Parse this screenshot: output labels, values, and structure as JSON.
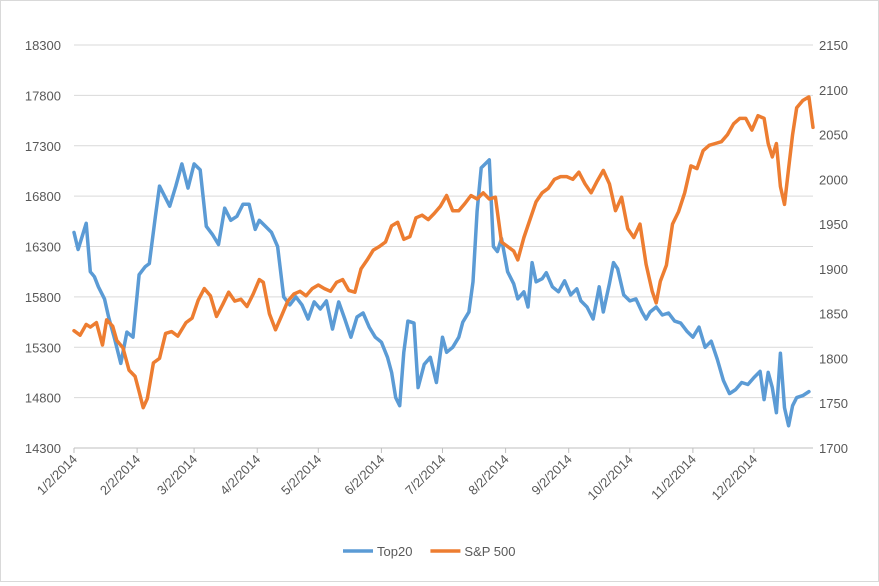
{
  "chart_data": {
    "type": "line",
    "title": "",
    "xlabel": "",
    "ylabel": "",
    "y_left_ticks": [
      14300,
      14800,
      15300,
      15800,
      16300,
      16800,
      17300,
      17800,
      18300
    ],
    "y_right_ticks": [
      1700,
      1750,
      1800,
      1850,
      1900,
      1950,
      2000,
      2050,
      2100,
      2150
    ],
    "ylim_left": [
      14300,
      18300
    ],
    "ylim_right": [
      1700,
      2150
    ],
    "x_tick_labels": [
      "1/2/2014",
      "2/2/2014",
      "3/2/2014",
      "4/2/2014",
      "5/2/2014",
      "6/2/2014",
      "7/2/2014",
      "8/2/2014",
      "9/2/2014",
      "10/2/2014",
      "11/2/2014",
      "12/2/2014"
    ],
    "x_range": [
      "1/2/2014",
      "12/31/2014"
    ],
    "grid": "horizontal",
    "legend_position": "bottom",
    "series": [
      {
        "name": "Top20",
        "axis": "left",
        "color": "#5b9bd5",
        "points": [
          [
            "2014-01-02",
            16440
          ],
          [
            "2014-01-04",
            16270
          ],
          [
            "2014-01-08",
            16530
          ],
          [
            "2014-01-10",
            16050
          ],
          [
            "2014-01-12",
            16000
          ],
          [
            "2014-01-14",
            15900
          ],
          [
            "2014-01-17",
            15780
          ],
          [
            "2014-01-19",
            15600
          ],
          [
            "2014-01-22",
            15380
          ],
          [
            "2014-01-25",
            15140
          ],
          [
            "2014-01-28",
            15450
          ],
          [
            "2014-01-31",
            15400
          ],
          [
            "2014-02-03",
            16020
          ],
          [
            "2014-02-06",
            16100
          ],
          [
            "2014-02-08",
            16130
          ],
          [
            "2014-02-11",
            16600
          ],
          [
            "2014-02-13",
            16900
          ],
          [
            "2014-02-16",
            16780
          ],
          [
            "2014-02-18",
            16700
          ],
          [
            "2014-02-21",
            16900
          ],
          [
            "2014-02-24",
            17120
          ],
          [
            "2014-02-27",
            16880
          ],
          [
            "2014-03-02",
            17120
          ],
          [
            "2014-03-05",
            17060
          ],
          [
            "2014-03-08",
            16500
          ],
          [
            "2014-03-11",
            16420
          ],
          [
            "2014-03-14",
            16320
          ],
          [
            "2014-03-17",
            16680
          ],
          [
            "2014-03-20",
            16560
          ],
          [
            "2014-03-23",
            16600
          ],
          [
            "2014-03-26",
            16720
          ],
          [
            "2014-03-29",
            16720
          ],
          [
            "2014-04-01",
            16470
          ],
          [
            "2014-04-03",
            16560
          ],
          [
            "2014-04-06",
            16500
          ],
          [
            "2014-04-09",
            16440
          ],
          [
            "2014-04-12",
            16300
          ],
          [
            "2014-04-15",
            15800
          ],
          [
            "2014-04-18",
            15720
          ],
          [
            "2014-04-21",
            15800
          ],
          [
            "2014-04-24",
            15720
          ],
          [
            "2014-04-27",
            15580
          ],
          [
            "2014-04-30",
            15750
          ],
          [
            "2014-05-03",
            15680
          ],
          [
            "2014-05-06",
            15760
          ],
          [
            "2014-05-09",
            15480
          ],
          [
            "2014-05-12",
            15750
          ],
          [
            "2014-05-15",
            15580
          ],
          [
            "2014-05-18",
            15400
          ],
          [
            "2014-05-21",
            15600
          ],
          [
            "2014-05-24",
            15640
          ],
          [
            "2014-05-27",
            15500
          ],
          [
            "2014-05-30",
            15400
          ],
          [
            "2014-06-02",
            15350
          ],
          [
            "2014-06-05",
            15200
          ],
          [
            "2014-06-07",
            15050
          ],
          [
            "2014-06-09",
            14800
          ],
          [
            "2014-06-11",
            14720
          ],
          [
            "2014-06-13",
            15250
          ],
          [
            "2014-06-15",
            15560
          ],
          [
            "2014-06-18",
            15540
          ],
          [
            "2014-06-20",
            14900
          ],
          [
            "2014-06-23",
            15130
          ],
          [
            "2014-06-26",
            15200
          ],
          [
            "2014-06-29",
            14950
          ],
          [
            "2014-07-02",
            15400
          ],
          [
            "2014-07-04",
            15250
          ],
          [
            "2014-07-07",
            15300
          ],
          [
            "2014-07-10",
            15400
          ],
          [
            "2014-07-12",
            15550
          ],
          [
            "2014-07-15",
            15650
          ],
          [
            "2014-07-17",
            15950
          ],
          [
            "2014-07-19",
            16650
          ],
          [
            "2014-07-21",
            17080
          ],
          [
            "2014-07-25",
            17160
          ],
          [
            "2014-07-27",
            16300
          ],
          [
            "2014-07-29",
            16250
          ],
          [
            "2014-07-31",
            16380
          ],
          [
            "2014-08-03",
            16050
          ],
          [
            "2014-08-06",
            15930
          ],
          [
            "2014-08-08",
            15780
          ],
          [
            "2014-08-11",
            15850
          ],
          [
            "2014-08-13",
            15700
          ],
          [
            "2014-08-15",
            16140
          ],
          [
            "2014-08-17",
            15950
          ],
          [
            "2014-08-20",
            15980
          ],
          [
            "2014-08-22",
            16040
          ],
          [
            "2014-08-25",
            15900
          ],
          [
            "2014-08-28",
            15850
          ],
          [
            "2014-08-31",
            15960
          ],
          [
            "2014-09-03",
            15820
          ],
          [
            "2014-09-06",
            15880
          ],
          [
            "2014-09-08",
            15760
          ],
          [
            "2014-09-11",
            15700
          ],
          [
            "2014-09-14",
            15580
          ],
          [
            "2014-09-17",
            15900
          ],
          [
            "2014-09-19",
            15650
          ],
          [
            "2014-09-22",
            15930
          ],
          [
            "2014-09-24",
            16140
          ],
          [
            "2014-09-26",
            16080
          ],
          [
            "2014-09-29",
            15820
          ],
          [
            "2014-10-02",
            15760
          ],
          [
            "2014-10-05",
            15780
          ],
          [
            "2014-10-08",
            15650
          ],
          [
            "2014-10-10",
            15580
          ],
          [
            "2014-10-12",
            15650
          ],
          [
            "2014-10-15",
            15700
          ],
          [
            "2014-10-18",
            15620
          ],
          [
            "2014-10-21",
            15640
          ],
          [
            "2014-10-24",
            15560
          ],
          [
            "2014-10-27",
            15540
          ],
          [
            "2014-10-30",
            15460
          ],
          [
            "2014-11-02",
            15400
          ],
          [
            "2014-11-05",
            15500
          ],
          [
            "2014-11-08",
            15300
          ],
          [
            "2014-11-11",
            15360
          ],
          [
            "2014-11-14",
            15180
          ],
          [
            "2014-11-17",
            14970
          ],
          [
            "2014-11-20",
            14840
          ],
          [
            "2014-11-23",
            14880
          ],
          [
            "2014-11-26",
            14950
          ],
          [
            "2014-11-29",
            14930
          ],
          [
            "2014-12-02",
            15000
          ],
          [
            "2014-12-05",
            15060
          ],
          [
            "2014-12-07",
            14780
          ],
          [
            "2014-12-09",
            15050
          ],
          [
            "2014-12-11",
            14900
          ],
          [
            "2014-12-13",
            14650
          ],
          [
            "2014-12-15",
            15240
          ],
          [
            "2014-12-17",
            14700
          ],
          [
            "2014-12-19",
            14520
          ],
          [
            "2014-12-21",
            14720
          ],
          [
            "2014-12-23",
            14800
          ],
          [
            "2014-12-26",
            14820
          ],
          [
            "2014-12-29",
            14860
          ]
        ]
      },
      {
        "name": "S&P 500",
        "axis": "right",
        "color": "#ed7d31",
        "points": [
          [
            "2014-01-02",
            1831
          ],
          [
            "2014-01-05",
            1826
          ],
          [
            "2014-01-08",
            1838
          ],
          [
            "2014-01-10",
            1835
          ],
          [
            "2014-01-13",
            1840
          ],
          [
            "2014-01-16",
            1815
          ],
          [
            "2014-01-18",
            1843
          ],
          [
            "2014-01-21",
            1836
          ],
          [
            "2014-01-23",
            1820
          ],
          [
            "2014-01-26",
            1812
          ],
          [
            "2014-01-29",
            1787
          ],
          [
            "2014-02-01",
            1780
          ],
          [
            "2014-02-03",
            1763
          ],
          [
            "2014-02-05",
            1745
          ],
          [
            "2014-02-07",
            1755
          ],
          [
            "2014-02-10",
            1795
          ],
          [
            "2014-02-13",
            1800
          ],
          [
            "2014-02-16",
            1828
          ],
          [
            "2014-02-19",
            1830
          ],
          [
            "2014-02-22",
            1825
          ],
          [
            "2014-02-26",
            1840
          ],
          [
            "2014-03-01",
            1845
          ],
          [
            "2014-03-04",
            1865
          ],
          [
            "2014-03-07",
            1878
          ],
          [
            "2014-03-10",
            1870
          ],
          [
            "2014-03-13",
            1847
          ],
          [
            "2014-03-16",
            1860
          ],
          [
            "2014-03-19",
            1874
          ],
          [
            "2014-03-22",
            1864
          ],
          [
            "2014-03-25",
            1866
          ],
          [
            "2014-03-28",
            1858
          ],
          [
            "2014-03-31",
            1872
          ],
          [
            "2014-04-03",
            1888
          ],
          [
            "2014-04-05",
            1885
          ],
          [
            "2014-04-08",
            1850
          ],
          [
            "2014-04-11",
            1832
          ],
          [
            "2014-04-14",
            1848
          ],
          [
            "2014-04-17",
            1864
          ],
          [
            "2014-04-20",
            1872
          ],
          [
            "2014-04-23",
            1875
          ],
          [
            "2014-04-26",
            1870
          ],
          [
            "2014-04-29",
            1878
          ],
          [
            "2014-05-02",
            1882
          ],
          [
            "2014-05-05",
            1878
          ],
          [
            "2014-05-08",
            1875
          ],
          [
            "2014-05-11",
            1885
          ],
          [
            "2014-05-14",
            1888
          ],
          [
            "2014-05-17",
            1876
          ],
          [
            "2014-05-20",
            1874
          ],
          [
            "2014-05-23",
            1900
          ],
          [
            "2014-05-26",
            1910
          ],
          [
            "2014-05-29",
            1921
          ],
          [
            "2014-06-01",
            1925
          ],
          [
            "2014-06-04",
            1930
          ],
          [
            "2014-06-07",
            1948
          ],
          [
            "2014-06-10",
            1952
          ],
          [
            "2014-06-13",
            1933
          ],
          [
            "2014-06-16",
            1936
          ],
          [
            "2014-06-19",
            1957
          ],
          [
            "2014-06-22",
            1960
          ],
          [
            "2014-06-25",
            1955
          ],
          [
            "2014-06-28",
            1962
          ],
          [
            "2014-07-01",
            1970
          ],
          [
            "2014-07-04",
            1982
          ],
          [
            "2014-07-07",
            1965
          ],
          [
            "2014-07-10",
            1965
          ],
          [
            "2014-07-13",
            1973
          ],
          [
            "2014-07-16",
            1982
          ],
          [
            "2014-07-19",
            1978
          ],
          [
            "2014-07-22",
            1985
          ],
          [
            "2014-07-25",
            1978
          ],
          [
            "2014-07-28",
            1980
          ],
          [
            "2014-07-31",
            1930
          ],
          [
            "2014-08-03",
            1925
          ],
          [
            "2014-08-06",
            1920
          ],
          [
            "2014-08-08",
            1910
          ],
          [
            "2014-08-11",
            1935
          ],
          [
            "2014-08-14",
            1955
          ],
          [
            "2014-08-17",
            1975
          ],
          [
            "2014-08-20",
            1985
          ],
          [
            "2014-08-23",
            1990
          ],
          [
            "2014-08-26",
            2000
          ],
          [
            "2014-08-29",
            2003
          ],
          [
            "2014-09-01",
            2003
          ],
          [
            "2014-09-04",
            2000
          ],
          [
            "2014-09-07",
            2008
          ],
          [
            "2014-09-10",
            1995
          ],
          [
            "2014-09-13",
            1985
          ],
          [
            "2014-09-16",
            1998
          ],
          [
            "2014-09-19",
            2010
          ],
          [
            "2014-09-22",
            1995
          ],
          [
            "2014-09-25",
            1965
          ],
          [
            "2014-09-28",
            1980
          ],
          [
            "2014-10-01",
            1945
          ],
          [
            "2014-10-04",
            1935
          ],
          [
            "2014-10-07",
            1950
          ],
          [
            "2014-10-10",
            1905
          ],
          [
            "2014-10-13",
            1875
          ],
          [
            "2014-10-15",
            1862
          ],
          [
            "2014-10-17",
            1886
          ],
          [
            "2014-10-20",
            1904
          ],
          [
            "2014-10-23",
            1950
          ],
          [
            "2014-10-26",
            1964
          ],
          [
            "2014-10-29",
            1985
          ],
          [
            "2014-11-01",
            2015
          ],
          [
            "2014-11-04",
            2012
          ],
          [
            "2014-11-07",
            2032
          ],
          [
            "2014-11-10",
            2038
          ],
          [
            "2014-11-13",
            2040
          ],
          [
            "2014-11-16",
            2042
          ],
          [
            "2014-11-19",
            2050
          ],
          [
            "2014-11-22",
            2062
          ],
          [
            "2014-11-25",
            2068
          ],
          [
            "2014-11-28",
            2068
          ],
          [
            "2014-12-01",
            2055
          ],
          [
            "2014-12-04",
            2071
          ],
          [
            "2014-12-07",
            2068
          ],
          [
            "2014-12-09",
            2040
          ],
          [
            "2014-12-11",
            2025
          ],
          [
            "2014-12-13",
            2040
          ],
          [
            "2014-12-15",
            1992
          ],
          [
            "2014-12-17",
            1972
          ],
          [
            "2014-12-19",
            2012
          ],
          [
            "2014-12-21",
            2050
          ],
          [
            "2014-12-23",
            2080
          ],
          [
            "2014-12-26",
            2088
          ],
          [
            "2014-12-29",
            2092
          ],
          [
            "2014-12-31",
            2058
          ]
        ]
      }
    ]
  }
}
